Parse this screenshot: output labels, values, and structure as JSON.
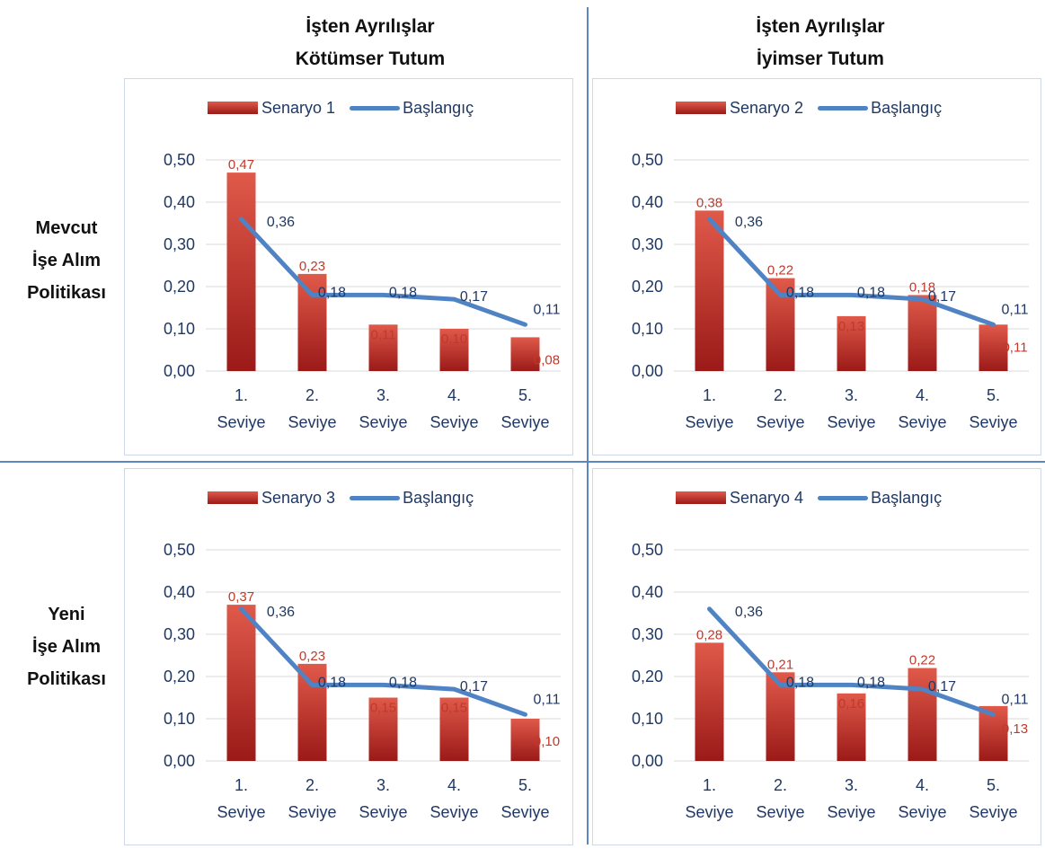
{
  "column_headers": [
    {
      "line1": "İşten Ayrılışlar",
      "line2": "Kötümser Tutum"
    },
    {
      "line1": "İşten Ayrılışlar",
      "line2": "İyimser Tutum"
    }
  ],
  "row_headers": [
    {
      "line1": "Mevcut",
      "line2": "İşe Alım",
      "line3": "Politikası"
    },
    {
      "line1": "Yeni",
      "line2": "İşe Alım",
      "line3": "Politikası"
    }
  ],
  "colors": {
    "bar_top": "#e05a4a",
    "bar_bottom": "#9b1a18",
    "line": "#4f83c4",
    "bar_label": "#c0392b",
    "text": "#1f3864"
  },
  "chart_data": [
    {
      "type": "bar",
      "legend": [
        "Senaryo 1",
        "Başlangıç"
      ],
      "categories": [
        [
          "1.",
          "Seviye"
        ],
        [
          "2.",
          "Seviye"
        ],
        [
          "3.",
          "Seviye"
        ],
        [
          "4.",
          "Seviye"
        ],
        [
          "5.",
          "Seviye"
        ]
      ],
      "yticks": [
        "0,00",
        "0,10",
        "0,20",
        "0,30",
        "0,40",
        "0,50"
      ],
      "ylim": [
        0,
        0.5
      ],
      "series": [
        {
          "name": "Senaryo 1",
          "type": "bar",
          "values": [
            0.47,
            0.23,
            0.11,
            0.1,
            0.08
          ],
          "labels": [
            "0,47",
            "0,23",
            "0,11",
            "0,10",
            "0,08"
          ]
        },
        {
          "name": "Başlangıç",
          "type": "line",
          "values": [
            0.36,
            0.18,
            0.18,
            0.17,
            0.11
          ],
          "labels": [
            "0,36",
            "0,18",
            "0,18",
            "0,17",
            "0,11"
          ]
        }
      ]
    },
    {
      "type": "bar",
      "legend": [
        "Senaryo 2",
        "Başlangıç"
      ],
      "categories": [
        [
          "1.",
          "Seviye"
        ],
        [
          "2.",
          "Seviye"
        ],
        [
          "3.",
          "Seviye"
        ],
        [
          "4.",
          "Seviye"
        ],
        [
          "5.",
          "Seviye"
        ]
      ],
      "yticks": [
        "0,00",
        "0,10",
        "0,20",
        "0,30",
        "0,40",
        "0,50"
      ],
      "ylim": [
        0,
        0.5
      ],
      "series": [
        {
          "name": "Senaryo 2",
          "type": "bar",
          "values": [
            0.38,
            0.22,
            0.13,
            0.18,
            0.11
          ],
          "labels": [
            "0,38",
            "0,22",
            "0,13",
            "0,18",
            "0,11"
          ]
        },
        {
          "name": "Başlangıç",
          "type": "line",
          "values": [
            0.36,
            0.18,
            0.18,
            0.17,
            0.11
          ],
          "labels": [
            "0,36",
            "0,18",
            "0,18",
            "0,17",
            "0,11"
          ]
        }
      ]
    },
    {
      "type": "bar",
      "legend": [
        "Senaryo 3",
        "Başlangıç"
      ],
      "categories": [
        [
          "1.",
          "Seviye"
        ],
        [
          "2.",
          "Seviye"
        ],
        [
          "3.",
          "Seviye"
        ],
        [
          "4.",
          "Seviye"
        ],
        [
          "5.",
          "Seviye"
        ]
      ],
      "yticks": [
        "0,00",
        "0,10",
        "0,20",
        "0,30",
        "0,40",
        "0,50"
      ],
      "ylim": [
        0,
        0.5
      ],
      "series": [
        {
          "name": "Senaryo 3",
          "type": "bar",
          "values": [
            0.37,
            0.23,
            0.15,
            0.15,
            0.1
          ],
          "labels": [
            "0,37",
            "0,23",
            "0,15",
            "0,15",
            "0,10"
          ]
        },
        {
          "name": "Başlangıç",
          "type": "line",
          "values": [
            0.36,
            0.18,
            0.18,
            0.17,
            0.11
          ],
          "labels": [
            "0,36",
            "0,18",
            "0,18",
            "0,17",
            "0,11"
          ]
        }
      ]
    },
    {
      "type": "bar",
      "legend": [
        "Senaryo 4",
        "Başlangıç"
      ],
      "categories": [
        [
          "1.",
          "Seviye"
        ],
        [
          "2.",
          "Seviye"
        ],
        [
          "3.",
          "Seviye"
        ],
        [
          "4.",
          "Seviye"
        ],
        [
          "5.",
          "Seviye"
        ]
      ],
      "yticks": [
        "0,00",
        "0,10",
        "0,20",
        "0,30",
        "0,40",
        "0,50"
      ],
      "ylim": [
        0,
        0.5
      ],
      "series": [
        {
          "name": "Senaryo 4",
          "type": "bar",
          "values": [
            0.28,
            0.21,
            0.16,
            0.22,
            0.13
          ],
          "labels": [
            "0,28",
            "0,21",
            "0,16",
            "0,22",
            "0,13"
          ]
        },
        {
          "name": "Başlangıç",
          "type": "line",
          "values": [
            0.36,
            0.18,
            0.18,
            0.17,
            0.11
          ],
          "labels": [
            "0,36",
            "0,18",
            "0,18",
            "0,17",
            "0,11"
          ]
        }
      ]
    }
  ]
}
